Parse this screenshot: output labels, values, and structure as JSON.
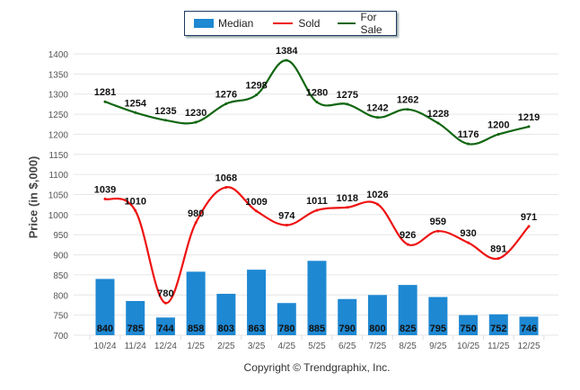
{
  "chart_data": {
    "type": "bar+line",
    "title": "",
    "xlabel": "",
    "ylabel": "Price (in $,000)",
    "ylim": [
      700,
      1400
    ],
    "ytick_step": 50,
    "yticks": [
      "700",
      "750",
      "800",
      "850",
      "900",
      "950",
      "1000",
      "1050",
      "1100",
      "1150",
      "1200",
      "1250",
      "1300",
      "1350",
      "1400"
    ],
    "grid": true,
    "legend_position": "top-center",
    "categories": [
      "10/24",
      "11/24",
      "12/24",
      "1/25",
      "2/25",
      "3/25",
      "4/25",
      "5/25",
      "6/25",
      "7/25",
      "8/25",
      "9/25",
      "10/25",
      "11/25",
      "12/25"
    ],
    "series": [
      {
        "name": "Median",
        "type": "bar",
        "color": "#1e88d2",
        "values": [
          840,
          785,
          744,
          858,
          803,
          863,
          780,
          885,
          790,
          800,
          825,
          795,
          750,
          752,
          746
        ]
      },
      {
        "name": "Sold",
        "type": "line",
        "color": "#ee1111",
        "values": [
          1039,
          1010,
          780,
          980,
          1068,
          1009,
          974,
          1011,
          1018,
          1026,
          926,
          959,
          930,
          891,
          971
        ]
      },
      {
        "name": "For Sale",
        "type": "line",
        "color": "#116611",
        "values": [
          1281,
          1254,
          1235,
          1230,
          1276,
          1298,
          1384,
          1280,
          1275,
          1242,
          1262,
          1228,
          1176,
          1200,
          1219
        ]
      }
    ]
  },
  "legend": {
    "items": [
      {
        "label": "Median",
        "color": "#1e88d2"
      },
      {
        "label": "Sold",
        "color": "#ee1111"
      },
      {
        "label": "For Sale",
        "color": "#116611"
      }
    ]
  },
  "footer": {
    "copyright": "Copyright © Trendgraphix, Inc."
  }
}
